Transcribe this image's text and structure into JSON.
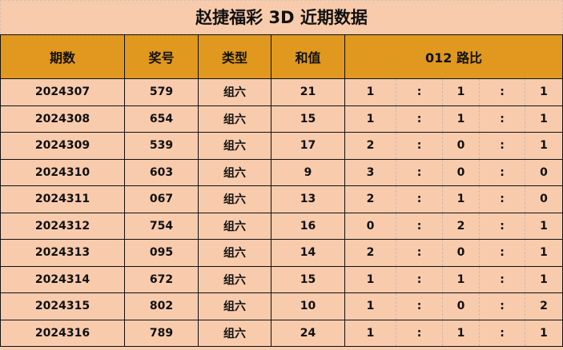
{
  "title": "赵捷福彩 3D 近期数据",
  "headers": [
    "期数",
    "奖号",
    "类型",
    "和值",
    "012 路比"
  ],
  "rows": [
    {
      "issue": "2024307",
      "number": "579",
      "type": "组六",
      "sum": "21",
      "ratio": [
        "1",
        ":",
        "1",
        ":",
        "1"
      ]
    },
    {
      "issue": "2024308",
      "number": "654",
      "type": "组六",
      "sum": "15",
      "ratio": [
        "1",
        ":",
        "1",
        ":",
        "1"
      ]
    },
    {
      "issue": "2024309",
      "number": "539",
      "type": "组六",
      "sum": "17",
      "ratio": [
        "2",
        ":",
        "0",
        ":",
        "1"
      ]
    },
    {
      "issue": "2024310",
      "number": "603",
      "type": "组六",
      "sum": "9",
      "ratio": [
        "3",
        ":",
        "0",
        ":",
        "0"
      ]
    },
    {
      "issue": "2024311",
      "number": "067",
      "type": "组六",
      "sum": "13",
      "ratio": [
        "2",
        ":",
        "1",
        ":",
        "0"
      ]
    },
    {
      "issue": "2024312",
      "number": "754",
      "type": "组六",
      "sum": "16",
      "ratio": [
        "0",
        ":",
        "2",
        ":",
        "1"
      ]
    },
    {
      "issue": "2024313",
      "number": "095",
      "type": "组六",
      "sum": "14",
      "ratio": [
        "2",
        ":",
        "0",
        ":",
        "1"
      ]
    },
    {
      "issue": "2024314",
      "number": "672",
      "type": "组六",
      "sum": "15",
      "ratio": [
        "1",
        ":",
        "1",
        ":",
        "1"
      ]
    },
    {
      "issue": "2024315",
      "number": "802",
      "type": "组六",
      "sum": "10",
      "ratio": [
        "1",
        ":",
        "0",
        ":",
        "2"
      ]
    },
    {
      "issue": "2024316",
      "number": "789",
      "type": "组六",
      "sum": "24",
      "ratio": [
        "1",
        ":",
        "1",
        ":",
        "1"
      ]
    }
  ],
  "colors": {
    "header_bg": "#E0981E",
    "row_bg": "#F8CBAD"
  }
}
